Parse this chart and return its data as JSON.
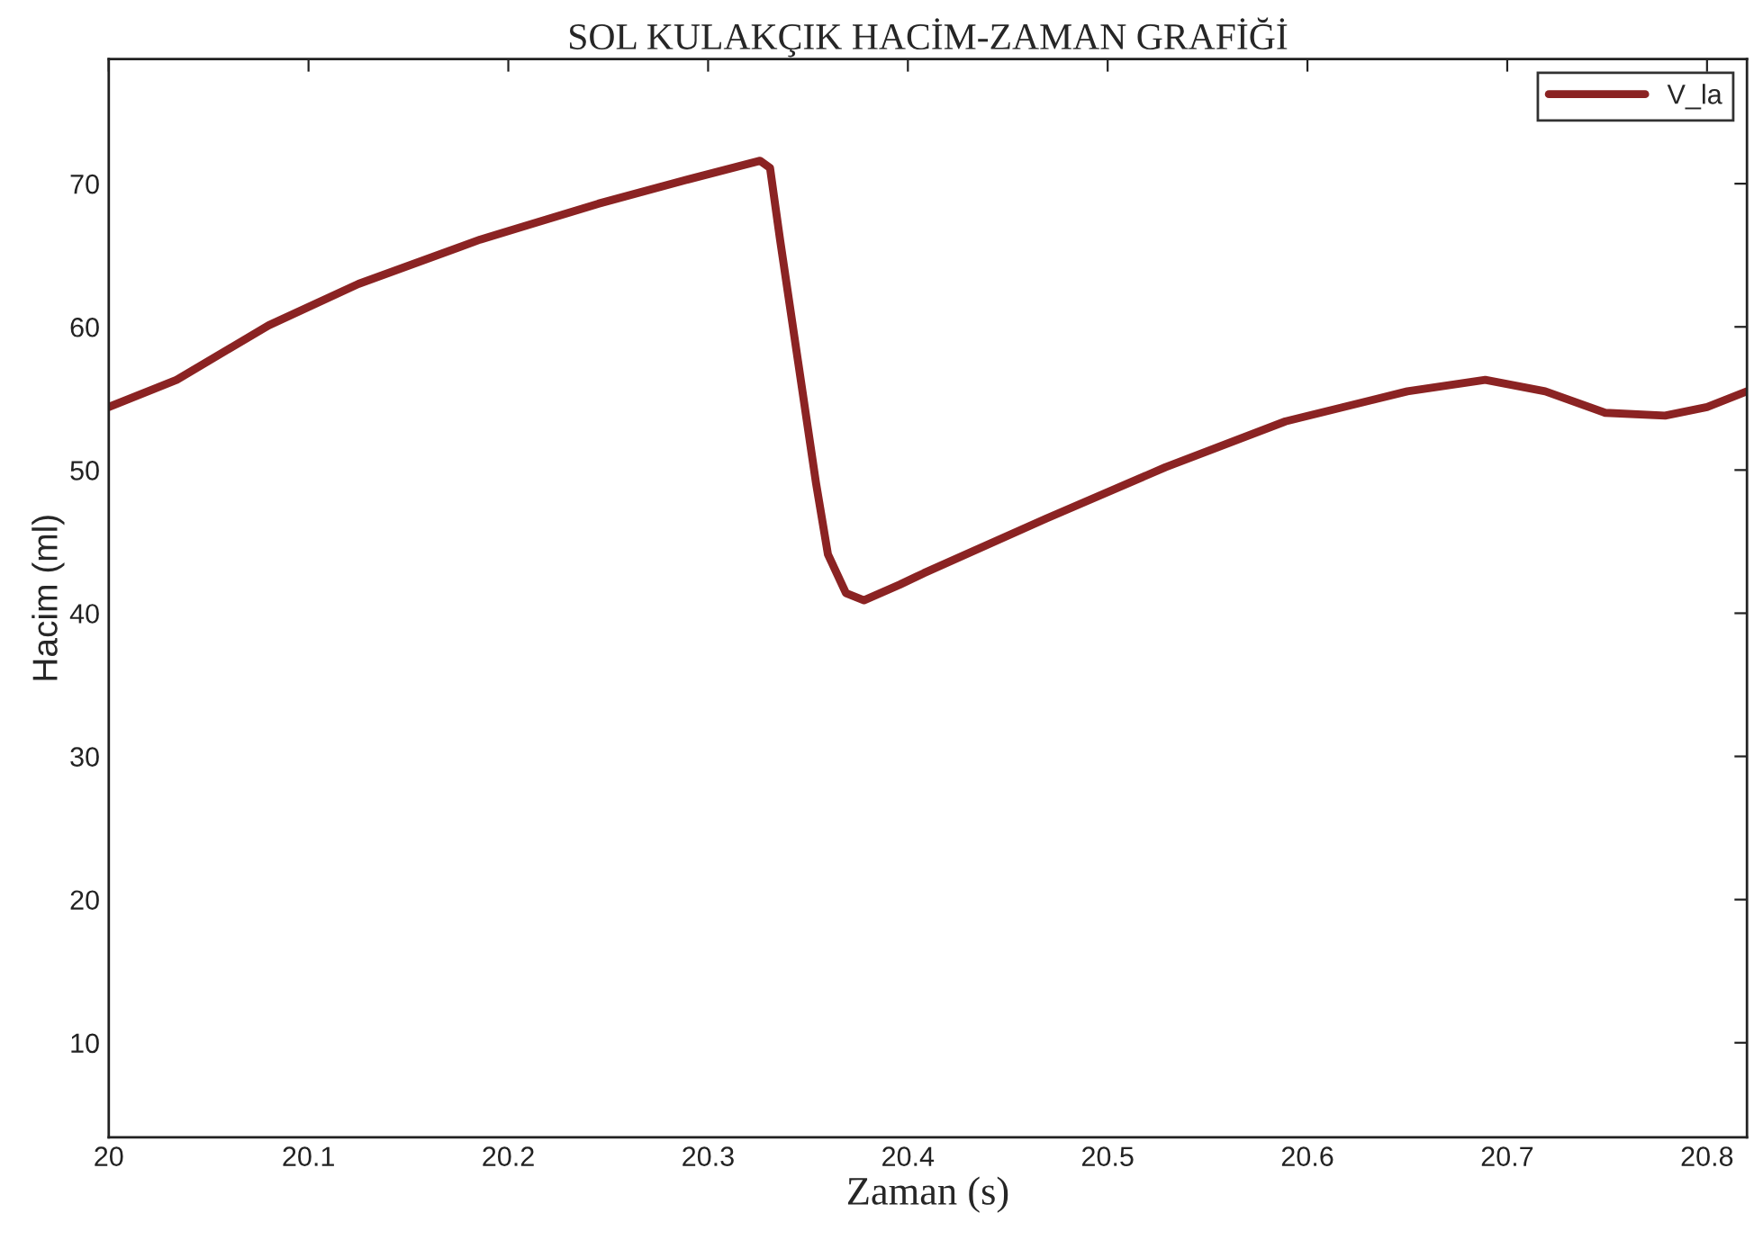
{
  "chart_data": {
    "type": "line",
    "title": "SOL KULAKÇIK HACİM-ZAMAN GRAFİĞİ",
    "xlabel": "Zaman (s)",
    "ylabel": "Hacim (ml)",
    "x": [
      20.0,
      20.034,
      20.08,
      20.125,
      20.186,
      20.245,
      20.29,
      20.326,
      20.331,
      20.336,
      20.345,
      20.354,
      20.36,
      20.369,
      20.378,
      20.396,
      20.408,
      20.469,
      20.529,
      20.589,
      20.65,
      20.689,
      20.719,
      20.749,
      20.779,
      20.8,
      20.82
    ],
    "series": [
      {
        "name": "V_la",
        "color": "#8b2323",
        "values": [
          54.4,
          56.3,
          60.1,
          63.0,
          66.1,
          68.6,
          70.3,
          71.6,
          71.1,
          66.1,
          57.6,
          49.1,
          44.1,
          41.4,
          40.9,
          42.0,
          42.8,
          46.6,
          50.2,
          53.4,
          55.5,
          56.3,
          55.5,
          54.0,
          53.8,
          54.4,
          55.5
        ]
      }
    ],
    "xlim": [
      20,
      20.82
    ],
    "ylim": [
      3.4,
      78.7
    ],
    "xticks": [
      {
        "value": 20,
        "label": "20"
      },
      20.1,
      20.2,
      20.3,
      20.4,
      20.5,
      20.6,
      20.7,
      20.8
    ],
    "yticks": [
      10,
      20,
      30,
      40,
      50,
      60,
      70
    ],
    "grid": false,
    "legend": "top right",
    "marker": "none",
    "line_style": "solid"
  }
}
